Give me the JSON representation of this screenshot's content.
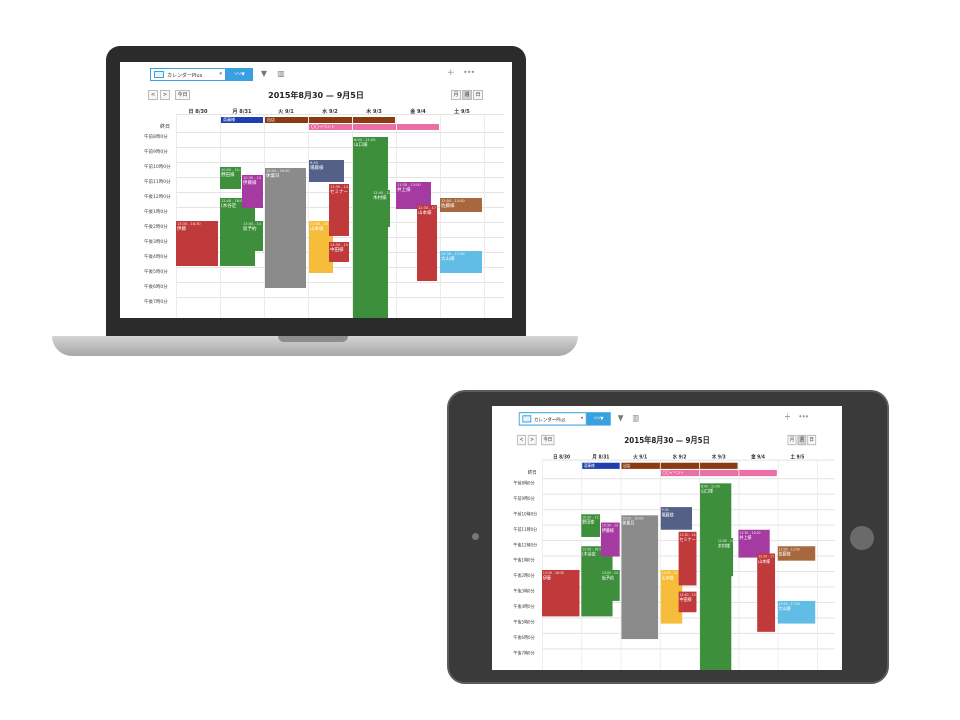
{
  "app": {
    "calendar_selector": "カレンダーPlus",
    "trend_icon": "trend-icon",
    "filter_icon": "filter-icon",
    "chart_icon": "bar-chart-icon",
    "add_icon": "plus-icon",
    "more_icon": "more-icon"
  },
  "nav": {
    "prev": "<",
    "next": ">",
    "today": "今日",
    "title": "2015年8月30 — 9月5日",
    "views": [
      "月",
      "週",
      "日"
    ]
  },
  "days": [
    "日 8/30",
    "月 8/31",
    "火 9/1",
    "水 9/2",
    "木 9/3",
    "金 9/4",
    "土 9/5"
  ],
  "allday": {
    "label": "終日",
    "events": [
      {
        "name": "斎藤様",
        "color": "#1f3fb0"
      },
      {
        "name": "出店",
        "color": "#8a3b12"
      },
      {
        "name": "〇〇イベント",
        "color": "#e96fa5"
      }
    ]
  },
  "times": [
    "午前8時0分",
    "午前9時0分",
    "午前10時0分",
    "午前11時0分",
    "午後12時0分",
    "午後1時0分",
    "午後2時0分",
    "午後3時0分",
    "午後4時0分",
    "午後5時0分",
    "午後6時0分",
    "午後7時0分"
  ],
  "events": [
    {
      "time": "13:30 - 16:30",
      "name": "伊藤",
      "color": "#c0393b"
    },
    {
      "time": "10:00 - 11:30",
      "name": "野田様",
      "color": "#3d8f3b"
    },
    {
      "time": "12:00 - 16:00",
      "name": "(木谷定",
      "color": "#3d8f3b"
    },
    {
      "time": "10:30 - 13",
      "name": "伊藤様",
      "color": "#a53aa0"
    },
    {
      "time": "13:00 - 14",
      "name": "仮予約",
      "color": "#3d8f3b"
    },
    {
      "time": "10:00 - 20:00",
      "name": "休業日",
      "color": "#8b8b8b"
    },
    {
      "time": "9:30",
      "name": "場藤様",
      "color": "#556088"
    },
    {
      "time": "13:00 - 16",
      "name": "山本様",
      "color": "#f5bd3a"
    },
    {
      "time": "11:30 - 14",
      "name": "セミナー",
      "color": "#c0393b"
    },
    {
      "time": "14:30 - 15",
      "name": "中田様",
      "color": "#c0393b"
    },
    {
      "time": "8:00 - 21:00",
      "name": "山口様",
      "color": "#3d8f3b"
    },
    {
      "time": "12:00 - 14",
      "name": "木村様",
      "color": "#3d8f3b"
    },
    {
      "time": "11:30 - 13:00",
      "name": "井上様",
      "color": "#a53aa0"
    },
    {
      "time": "12:30 - 17",
      "name": "山本様",
      "color": "#c0393b"
    },
    {
      "time": "12:00 - 13:00",
      "name": "佐藤様",
      "color": "#a8683e"
    },
    {
      "time": "15:30 - 17:00",
      "name": "大山様",
      "color": "#62bde6"
    }
  ]
}
